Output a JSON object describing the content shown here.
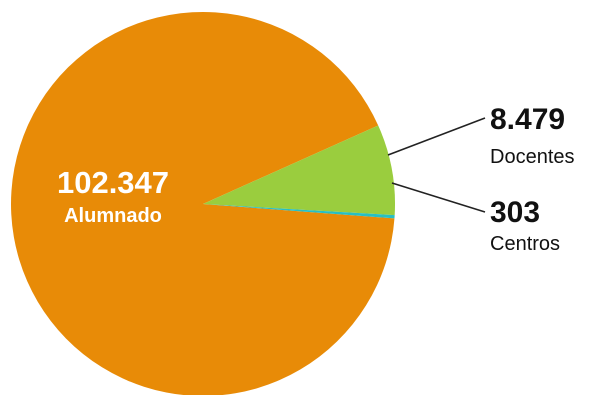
{
  "chart_data": {
    "type": "pie",
    "title": "",
    "slices": [
      {
        "label": "Alumnado",
        "value": 102347,
        "value_label": "102.347",
        "color": "#E88B07"
      },
      {
        "label": "Docentes",
        "value": 8479,
        "value_label": "8.479",
        "color": "#9ACD3E"
      },
      {
        "label": "Centros",
        "value": 303,
        "value_label": "303",
        "color": "#27BFC3"
      }
    ],
    "label_text_color_inside": "#FFFFFF",
    "label_text_color_outside": "#111111",
    "leader_line_color": "#222222"
  }
}
